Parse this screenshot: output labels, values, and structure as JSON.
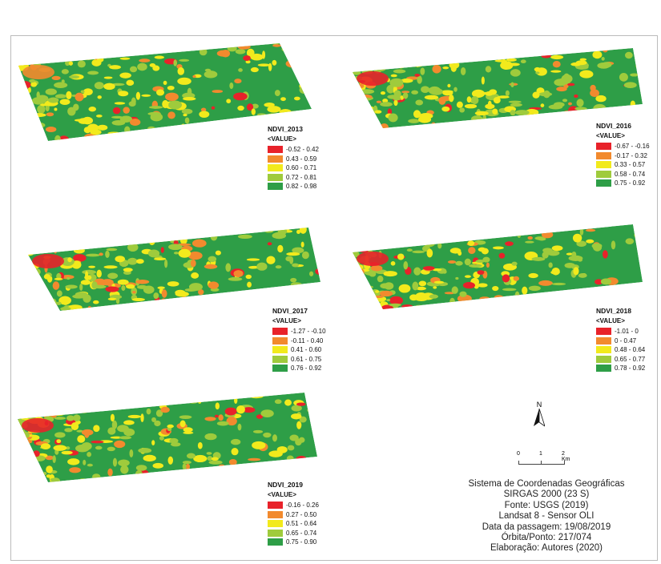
{
  "colors": {
    "class1": "#e8222a",
    "class2": "#f28a2e",
    "class3": "#f2ea1c",
    "class4": "#9fcb3c",
    "class5": "#2e9e47"
  },
  "maps": [
    {
      "title": "NDVI_2013",
      "field": "<VALUE>",
      "classes": [
        "-0.52 - 0.42",
        "0.43 - 0.59",
        "0.60 - 0.71",
        "0.72 - 0.81",
        "0.82 - 0.98"
      ]
    },
    {
      "title": "NDVI_2016",
      "field": "<VALUE>",
      "classes": [
        "-0.67 - -0.16",
        "-0.17 - 0.32",
        "0.33 - 0.57",
        "0.58 - 0.74",
        "0.75 - 0.92"
      ]
    },
    {
      "title": "NDVI_2017",
      "field": "<VALUE>",
      "classes": [
        "-1.27 - -0.10",
        "-0.11 - 0.40",
        "0.41 - 0.60",
        "0.61 - 0.75",
        "0.76 - 0.92"
      ]
    },
    {
      "title": "NDVI_2018",
      "field": "<VALUE>",
      "classes": [
        "-1.01 - 0",
        "0 - 0.47",
        "0.48 - 0.64",
        "0.65 - 0.77",
        "0.78 - 0.92"
      ]
    },
    {
      "title": "NDVI_2019",
      "field": "<VALUE>",
      "classes": [
        "-0.16 - 0.26",
        "0.27 - 0.50",
        "0.51 - 0.64",
        "0.65 - 0.74",
        "0.75 - 0.90"
      ]
    }
  ],
  "north": "N",
  "scale": {
    "t0": "0",
    "t1": "1",
    "t2": "2 Km"
  },
  "info": [
    "Sistema de Coordenadas Geográficas",
    "SIRGAS 2000 (23 S)",
    "Fonte: USGS (2019)",
    "Landsat 8 - Sensor OLI",
    "Data da passagem: 19/08/2019",
    "Órbita/Ponto: 217/074",
    "Elaboração: Autores (2020)"
  ]
}
